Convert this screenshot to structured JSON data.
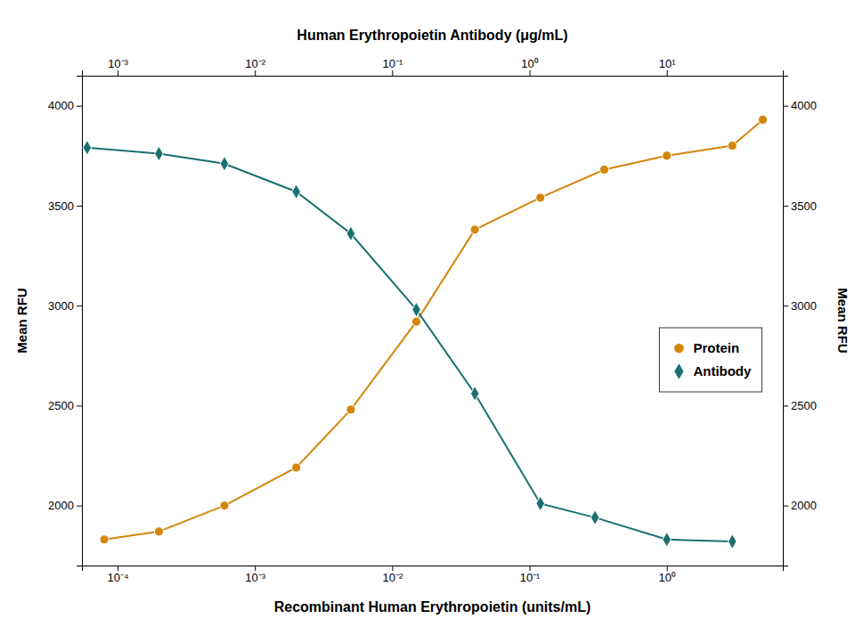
{
  "chart_data": {
    "type": "scatter",
    "log": "x",
    "grid": false,
    "legend": "right",
    "xlabel": "Recombinant Human Erythropoietin (units/mL)",
    "x2label": "Human Erythropoietin Antibody (μg/mL)",
    "ylabel": "Mean RFU",
    "y2label": "Mean RFU",
    "xlim": [
      5.5e-05,
      7.0
    ],
    "xticks": [
      {
        "value": 0.0001,
        "label": "10⁻⁴"
      },
      {
        "value": 0.001,
        "label": "10⁻³"
      },
      {
        "value": 0.01,
        "label": "10⁻²"
      },
      {
        "value": 0.1,
        "label": "10⁻¹"
      },
      {
        "value": 1,
        "label": "10⁰"
      }
    ],
    "x2lim": [
      0.00055,
      70.0
    ],
    "x2ticks": [
      {
        "value": 0.001,
        "label": "10⁻³"
      },
      {
        "value": 0.01,
        "label": "10⁻²"
      },
      {
        "value": 0.1,
        "label": "10⁻¹"
      },
      {
        "value": 1,
        "label": "10⁰"
      },
      {
        "value": 10,
        "label": "10¹"
      }
    ],
    "ylim": [
      1700,
      4150
    ],
    "yticks": [
      2000,
      2500,
      3000,
      3500,
      4000
    ],
    "y2lim": [
      1700,
      4150
    ],
    "y2ticks": [
      2000,
      2500,
      3000,
      3500,
      4000
    ],
    "series": [
      {
        "name": "Protein",
        "color": "#D4860A",
        "marker": "circle",
        "line_style": "solid",
        "x": [
          8e-05,
          0.0002,
          0.0006,
          0.002,
          0.005,
          0.015,
          0.04,
          0.12,
          0.35,
          1.0,
          3.0,
          5.0
        ],
        "values": [
          1830,
          1870,
          2000,
          2190,
          2480,
          2920,
          3380,
          3540,
          3680,
          3750,
          3800,
          3930
        ]
      },
      {
        "name": "Antibody",
        "color": "#1A7070",
        "marker": "diamond",
        "line_style": "solid",
        "x": [
          6e-05,
          0.0002,
          0.0006,
          0.002,
          0.005,
          0.015,
          0.04,
          0.12,
          0.3,
          1.0,
          3.0
        ],
        "values": [
          3790,
          3760,
          3710,
          3570,
          3360,
          2980,
          2560,
          2010,
          1940,
          1830,
          1820
        ]
      }
    ]
  }
}
